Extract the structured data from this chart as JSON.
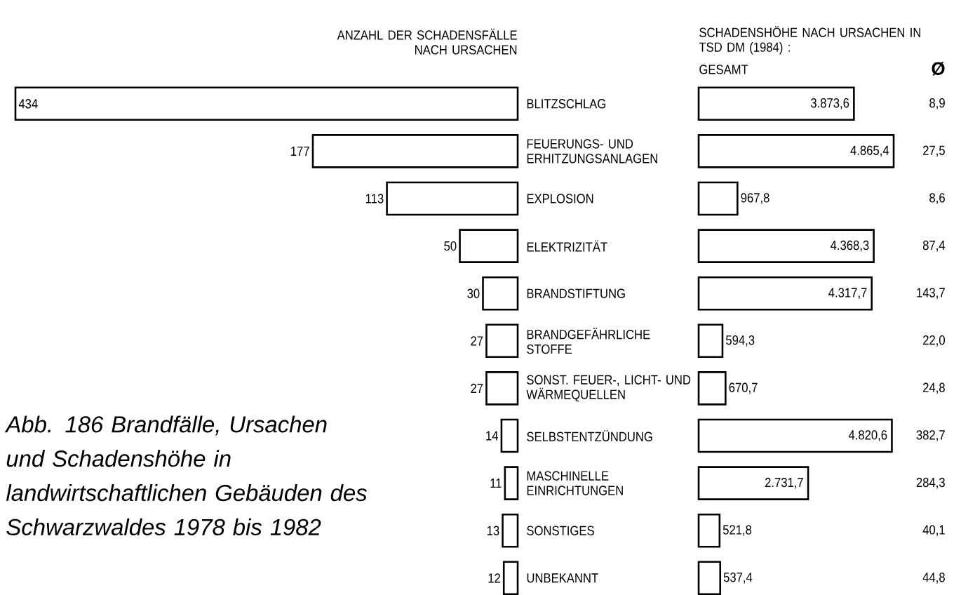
{
  "chart_data": [
    {
      "type": "bar",
      "orientation": "horizontal",
      "title": "ANZAHL DER SCHADENSFÄLLE NACH URSACHEN",
      "categories": [
        "BLITZSCHLAG",
        "FEUERUNGS- UND ERHITZUNGSANLAGEN",
        "EXPLOSION",
        "ELEKTRIZITÄT",
        "BRANDSTIFTUNG",
        "BRANDGEFÄHRLICHE STOFFE",
        "SONST. FEUER-, LICHT- UND WÄRMEQUELLEN",
        "SELBSTENTZÜNDUNG",
        "MASCHINELLE EINRICHTUNGEN",
        "SONSTIGES",
        "UNBEKANNT"
      ],
      "values": [
        434,
        177,
        113,
        50,
        30,
        27,
        27,
        14,
        11,
        13,
        12
      ],
      "color": "#000000",
      "data_labels": true,
      "annotations": [
        "*Abb. 186*   Brandfälle, Ursachen und Schadenshöhe in landwirtschaftlichen Gebäuden des Schwarzwaldes 1978 bis 1982"
      ]
    },
    {
      "type": "bar",
      "orientation": "horizontal",
      "title": "SCHADENSHÖHE NACH URSACHEN IN TSD DM (1984) :",
      "subtitle": "GESAMT",
      "categories": [
        null,
        null,
        null,
        null,
        null,
        null,
        null,
        null,
        null,
        null,
        null
      ],
      "values": [
        3873.6,
        4865.4,
        967.8,
        4368.3,
        4317.7,
        594.3,
        670.7,
        4820.6,
        2731.7,
        521.8,
        537.4
      ],
      "value_labels": [
        "3.873,6",
        "4.865,4",
        "967,8",
        "4.368,3",
        "4.317,7",
        "594,3",
        "670,7",
        "4.820,6",
        "2.731,7",
        "521,8",
        "537,4"
      ],
      "color": "#000000"
    },
    {
      "type": "other",
      "title": "Ø",
      "values": [
        8.9,
        27.5,
        8.6,
        87.4,
        143.7,
        22.0,
        24.8,
        382.7,
        284.3,
        40.1,
        44.8
      ],
      "value_labels": [
        "8,9",
        "27,5",
        "8,6",
        "87,4",
        "143,7",
        "22,0",
        "24,8",
        "382,7",
        "284,3",
        "40,1",
        "44,8"
      ]
    }
  ]
}
